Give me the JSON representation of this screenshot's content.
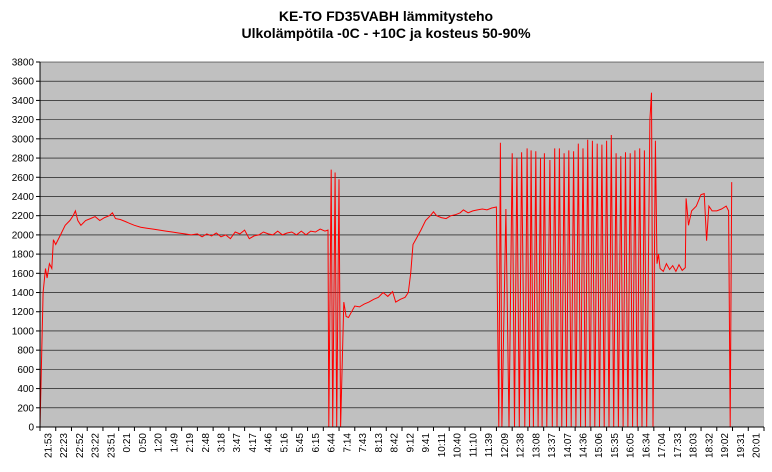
{
  "chart_data": {
    "type": "line",
    "title": "KE-TO FD35VABH lämmitysteho",
    "subtitle": "Ulkolämpötila  -0C - +10C ja kosteus 50-90%",
    "xlabel": "",
    "ylabel": "",
    "ylim": [
      0,
      3800
    ],
    "y_ticks": [
      0,
      200,
      400,
      600,
      800,
      1000,
      1200,
      1400,
      1600,
      1800,
      2000,
      2200,
      2400,
      2600,
      2800,
      3000,
      3200,
      3400,
      3600,
      3800
    ],
    "x_ticks": [
      "21:53",
      "22:23",
      "22:52",
      "23:22",
      "23:51",
      "0:21",
      "0:50",
      "1:20",
      "1:49",
      "2:19",
      "2:48",
      "3:18",
      "3:47",
      "4:17",
      "4:46",
      "5:16",
      "5:45",
      "6:15",
      "6:44",
      "7:14",
      "7:43",
      "8:13",
      "8:42",
      "9:12",
      "9:41",
      "10:11",
      "10:40",
      "11:10",
      "11:39",
      "12:09",
      "12:38",
      "13:08",
      "13:37",
      "14:07",
      "14:36",
      "15:06",
      "15:35",
      "16:05",
      "16:34",
      "17:04",
      "17:33",
      "18:03",
      "18:32",
      "19:02",
      "19:31",
      "20:01"
    ],
    "grid": true,
    "plot_background": "#c0c0c0",
    "series": [
      {
        "color": "#ff0000",
        "points": [
          [
            0.0,
            0
          ],
          [
            0.2,
            1400
          ],
          [
            0.35,
            1650
          ],
          [
            0.45,
            1550
          ],
          [
            0.6,
            1700
          ],
          [
            0.75,
            1650
          ],
          [
            0.85,
            1950
          ],
          [
            1.0,
            1900
          ],
          [
            1.3,
            2000
          ],
          [
            1.6,
            2100
          ],
          [
            1.9,
            2150
          ],
          [
            2.1,
            2200
          ],
          [
            2.25,
            2250
          ],
          [
            2.4,
            2150
          ],
          [
            2.6,
            2100
          ],
          [
            2.9,
            2150
          ],
          [
            3.2,
            2170
          ],
          [
            3.5,
            2190
          ],
          [
            3.8,
            2150
          ],
          [
            4.1,
            2180
          ],
          [
            4.4,
            2200
          ],
          [
            4.6,
            2230
          ],
          [
            4.8,
            2170
          ],
          [
            5.1,
            2160
          ],
          [
            5.4,
            2140
          ],
          [
            5.7,
            2120
          ],
          [
            6.0,
            2100
          ],
          [
            6.4,
            2080
          ],
          [
            6.8,
            2070
          ],
          [
            7.2,
            2060
          ],
          [
            7.6,
            2050
          ],
          [
            8.0,
            2040
          ],
          [
            8.4,
            2030
          ],
          [
            8.8,
            2020
          ],
          [
            9.2,
            2010
          ],
          [
            9.6,
            2000
          ],
          [
            10.0,
            2010
          ],
          [
            10.3,
            1980
          ],
          [
            10.6,
            2010
          ],
          [
            10.9,
            1990
          ],
          [
            11.2,
            2020
          ],
          [
            11.5,
            1980
          ],
          [
            11.8,
            2000
          ],
          [
            12.1,
            1960
          ],
          [
            12.4,
            2030
          ],
          [
            12.7,
            2010
          ],
          [
            13.0,
            2050
          ],
          [
            13.3,
            1960
          ],
          [
            13.6,
            1990
          ],
          [
            13.9,
            2000
          ],
          [
            14.2,
            2030
          ],
          [
            14.5,
            2010
          ],
          [
            14.8,
            2000
          ],
          [
            15.1,
            2040
          ],
          [
            15.4,
            2000
          ],
          [
            15.7,
            2020
          ],
          [
            16.0,
            2030
          ],
          [
            16.3,
            2000
          ],
          [
            16.6,
            2040
          ],
          [
            16.9,
            2000
          ],
          [
            17.2,
            2040
          ],
          [
            17.5,
            2030
          ],
          [
            17.8,
            2060
          ],
          [
            18.1,
            2040
          ],
          [
            18.3,
            2050
          ],
          [
            18.35,
            0
          ],
          [
            18.5,
            2680
          ],
          [
            18.6,
            0
          ],
          [
            18.75,
            2650
          ],
          [
            18.85,
            0
          ],
          [
            19.0,
            2580
          ],
          [
            19.1,
            0
          ],
          [
            19.3,
            1300
          ],
          [
            19.45,
            1150
          ],
          [
            19.6,
            1140
          ],
          [
            19.8,
            1200
          ],
          [
            20.0,
            1260
          ],
          [
            20.3,
            1250
          ],
          [
            20.6,
            1280
          ],
          [
            20.9,
            1300
          ],
          [
            21.2,
            1330
          ],
          [
            21.5,
            1350
          ],
          [
            21.8,
            1400
          ],
          [
            22.1,
            1360
          ],
          [
            22.4,
            1410
          ],
          [
            22.6,
            1300
          ],
          [
            22.9,
            1330
          ],
          [
            23.2,
            1350
          ],
          [
            23.4,
            1400
          ],
          [
            23.55,
            1600
          ],
          [
            23.7,
            1900
          ],
          [
            23.9,
            1960
          ],
          [
            24.2,
            2050
          ],
          [
            24.5,
            2150
          ],
          [
            24.8,
            2200
          ],
          [
            25.0,
            2240
          ],
          [
            25.2,
            2200
          ],
          [
            25.5,
            2180
          ],
          [
            25.8,
            2170
          ],
          [
            26.1,
            2200
          ],
          [
            26.4,
            2210
          ],
          [
            26.7,
            2230
          ],
          [
            26.9,
            2260
          ],
          [
            27.2,
            2230
          ],
          [
            27.5,
            2250
          ],
          [
            27.8,
            2260
          ],
          [
            28.1,
            2270
          ],
          [
            28.4,
            2260
          ],
          [
            28.7,
            2280
          ],
          [
            29.0,
            2290
          ],
          [
            29.15,
            0
          ],
          [
            29.25,
            2960
          ],
          [
            29.35,
            0
          ],
          [
            29.6,
            2270
          ],
          [
            29.8,
            0
          ],
          [
            30.0,
            2850
          ],
          [
            30.15,
            0
          ],
          [
            30.3,
            2800
          ],
          [
            30.45,
            0
          ],
          [
            30.6,
            2860
          ],
          [
            30.8,
            0
          ],
          [
            30.95,
            2900
          ],
          [
            31.1,
            0
          ],
          [
            31.2,
            2880
          ],
          [
            31.35,
            0
          ],
          [
            31.5,
            2870
          ],
          [
            31.65,
            0
          ],
          [
            31.8,
            2800
          ],
          [
            31.9,
            0
          ],
          [
            32.05,
            2850
          ],
          [
            32.2,
            0
          ],
          [
            32.4,
            2780
          ],
          [
            32.55,
            0
          ],
          [
            32.7,
            2900
          ],
          [
            32.85,
            0
          ],
          [
            33.0,
            2900
          ],
          [
            33.15,
            0
          ],
          [
            33.3,
            2850
          ],
          [
            33.45,
            0
          ],
          [
            33.6,
            2880
          ],
          [
            33.75,
            0
          ],
          [
            33.9,
            2870
          ],
          [
            34.05,
            0
          ],
          [
            34.2,
            2950
          ],
          [
            34.35,
            0
          ],
          [
            34.5,
            2900
          ],
          [
            34.65,
            0
          ],
          [
            34.8,
            2990
          ],
          [
            34.95,
            0
          ],
          [
            35.1,
            2980
          ],
          [
            35.25,
            0
          ],
          [
            35.4,
            2950
          ],
          [
            35.55,
            0
          ],
          [
            35.7,
            2940
          ],
          [
            35.85,
            0
          ],
          [
            36.0,
            2980
          ],
          [
            36.15,
            0
          ],
          [
            36.3,
            3040
          ],
          [
            36.45,
            0
          ],
          [
            36.6,
            2850
          ],
          [
            36.75,
            0
          ],
          [
            36.9,
            2820
          ],
          [
            37.05,
            0
          ],
          [
            37.2,
            2860
          ],
          [
            37.35,
            0
          ],
          [
            37.5,
            2850
          ],
          [
            37.65,
            0
          ],
          [
            37.8,
            2880
          ],
          [
            37.95,
            0
          ],
          [
            38.1,
            2900
          ],
          [
            38.25,
            0
          ],
          [
            38.4,
            2880
          ],
          [
            38.55,
            0
          ],
          [
            38.75,
            3200
          ],
          [
            38.85,
            3480
          ],
          [
            38.95,
            0
          ],
          [
            39.1,
            2980
          ],
          [
            39.2,
            1700
          ],
          [
            39.3,
            1800
          ],
          [
            39.4,
            1650
          ],
          [
            39.6,
            1620
          ],
          [
            39.8,
            1700
          ],
          [
            40.0,
            1640
          ],
          [
            40.2,
            1680
          ],
          [
            40.4,
            1620
          ],
          [
            40.6,
            1690
          ],
          [
            40.8,
            1630
          ],
          [
            41.0,
            1660
          ],
          [
            41.05,
            2380
          ],
          [
            41.15,
            2200
          ],
          [
            41.2,
            2100
          ],
          [
            41.4,
            2250
          ],
          [
            41.7,
            2300
          ],
          [
            42.0,
            2420
          ],
          [
            42.2,
            2430
          ],
          [
            42.35,
            1940
          ],
          [
            42.5,
            2300
          ],
          [
            42.7,
            2250
          ],
          [
            43.0,
            2250
          ],
          [
            43.3,
            2270
          ],
          [
            43.6,
            2300
          ],
          [
            43.75,
            2250
          ],
          [
            43.85,
            0
          ],
          [
            43.95,
            2550
          ]
        ]
      }
    ]
  }
}
